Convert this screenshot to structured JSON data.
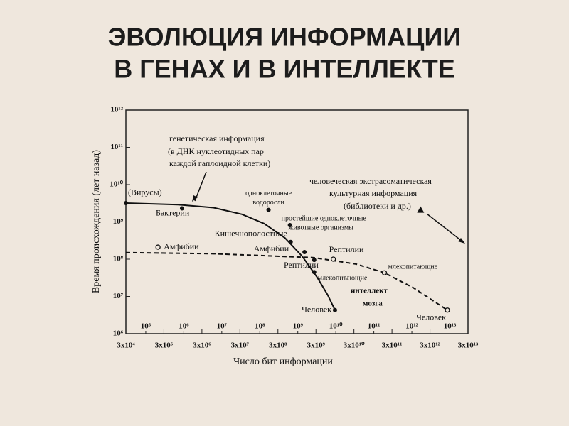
{
  "chart_data": {
    "type": "line",
    "title": [
      "ЭВОЛЮЦИЯ ИНФОРМАЦИИ",
      "В ГЕНАХ И В ИНТЕЛЛЕКТЕ"
    ],
    "xlabel": "Число бит информации",
    "ylabel": "Время происхождения (лет назад)",
    "xscale": "log",
    "yscale": "log",
    "xlim": [
      30000,
      30000000000000
    ],
    "ylim": [
      1000000,
      1000000000000
    ],
    "xticks": [
      {
        "value": 30000,
        "label": "3x10⁴"
      },
      {
        "value": 300000,
        "label": "3x10⁵"
      },
      {
        "value": 3000000,
        "label": "3x10⁶"
      },
      {
        "value": 30000000,
        "label": "3x10⁷"
      },
      {
        "value": 300000000,
        "label": "3x10⁸"
      },
      {
        "value": 3000000000,
        "label": "3x10⁹"
      },
      {
        "value": 30000000000,
        "label": "3x10¹⁰"
      },
      {
        "value": 300000000000,
        "label": "3x10¹¹"
      },
      {
        "value": 3000000000000,
        "label": "3x10¹²"
      },
      {
        "value": 30000000000000,
        "label": "3x10¹³"
      }
    ],
    "xticks_inner": [
      {
        "value": 100000,
        "label": "10⁵"
      },
      {
        "value": 1000000,
        "label": "10⁶"
      },
      {
        "value": 10000000,
        "label": "10⁷"
      },
      {
        "value": 100000000,
        "label": "10⁸"
      },
      {
        "value": 1000000000,
        "label": "10⁹"
      },
      {
        "value": 10000000000,
        "label": "10¹⁰"
      },
      {
        "value": 100000000000,
        "label": "10¹¹"
      },
      {
        "value": 1000000000000,
        "label": "10¹²"
      },
      {
        "value": 10000000000000,
        "label": "10¹³"
      }
    ],
    "yticks": [
      {
        "value": 1000000,
        "label": "10⁶"
      },
      {
        "value": 10000000,
        "label": "10⁷"
      },
      {
        "value": 100000000,
        "label": "10⁸"
      },
      {
        "value": 1000000000,
        "label": "10⁹"
      },
      {
        "value": 10000000000,
        "label": "10¹⁰"
      },
      {
        "value": 100000000000,
        "label": "10¹¹"
      },
      {
        "value": 1000000000000,
        "label": "10¹²"
      }
    ],
    "series": [
      {
        "color": "#111111",
        "dash": false,
        "x": [
          30000,
          700000,
          6100000,
          34000000,
          130000000,
          460000000,
          1300000000,
          3200000000,
          6100000000,
          9500000000
        ],
        "values": [
          3200000000,
          2900000000,
          2400000000,
          1600000000,
          900000000,
          370000000,
          120000000,
          33000000,
          11000000,
          4300000
        ]
      },
      {
        "color": "#111111",
        "dash": true,
        "x": [
          30000,
          6100000,
          2600000000,
          34000000000,
          190000000000,
          1100000000000,
          8600000000000
        ],
        "values": [
          150000000,
          140000000,
          110000000,
          74000000,
          43000000,
          17000000,
          4300000
        ]
      }
    ],
    "point_groups": [
      {
        "marker": "filled",
        "x": [
          30000,
          900000,
          170000000,
          620000000,
          650000000,
          1500000000,
          2700000000,
          2700000000,
          9500000000
        ],
        "values": [
          3200000000,
          2300000000,
          2100000000,
          820000000,
          290000000,
          155000000,
          95000000,
          45000000,
          4300000
        ],
        "labels": [
          [
            "(Вирусы)"
          ],
          [
            "Бактерии"
          ],
          [
            "одноклеточные",
            "водоросли"
          ],
          [
            "простейшие одноклеточные",
            "животные организмы"
          ],
          [
            "Кишечнополостные"
          ],
          [
            "Амфибии"
          ],
          [
            "Рептилии"
          ],
          [
            "млекопитающие"
          ],
          [
            "Человек"
          ]
        ]
      },
      {
        "marker": "open",
        "x": [
          210000,
          8600000000,
          190000000000,
          8600000000000
        ],
        "values": [
          210000000,
          100000000,
          43000000,
          4300000
        ],
        "labels": [
          [
            "Амфибии"
          ],
          [
            "Рептилии"
          ],
          [
            "млекопитающие"
          ],
          [
            "Человек"
          ]
        ]
      },
      {
        "marker": "triangle",
        "x": [
          1700000000000
        ],
        "values": [
          2100000000
        ]
      }
    ],
    "annotations": [
      [
        "генетическая информация",
        "(в ДНК нуклеотидных пар",
        "каждой гаплоидной клетки)"
      ],
      [
        "человеческая экстрасоматическая",
        "культурная информация",
        "(библиотеки и др.)"
      ],
      [
        "интеллект",
        "мозга"
      ]
    ]
  }
}
